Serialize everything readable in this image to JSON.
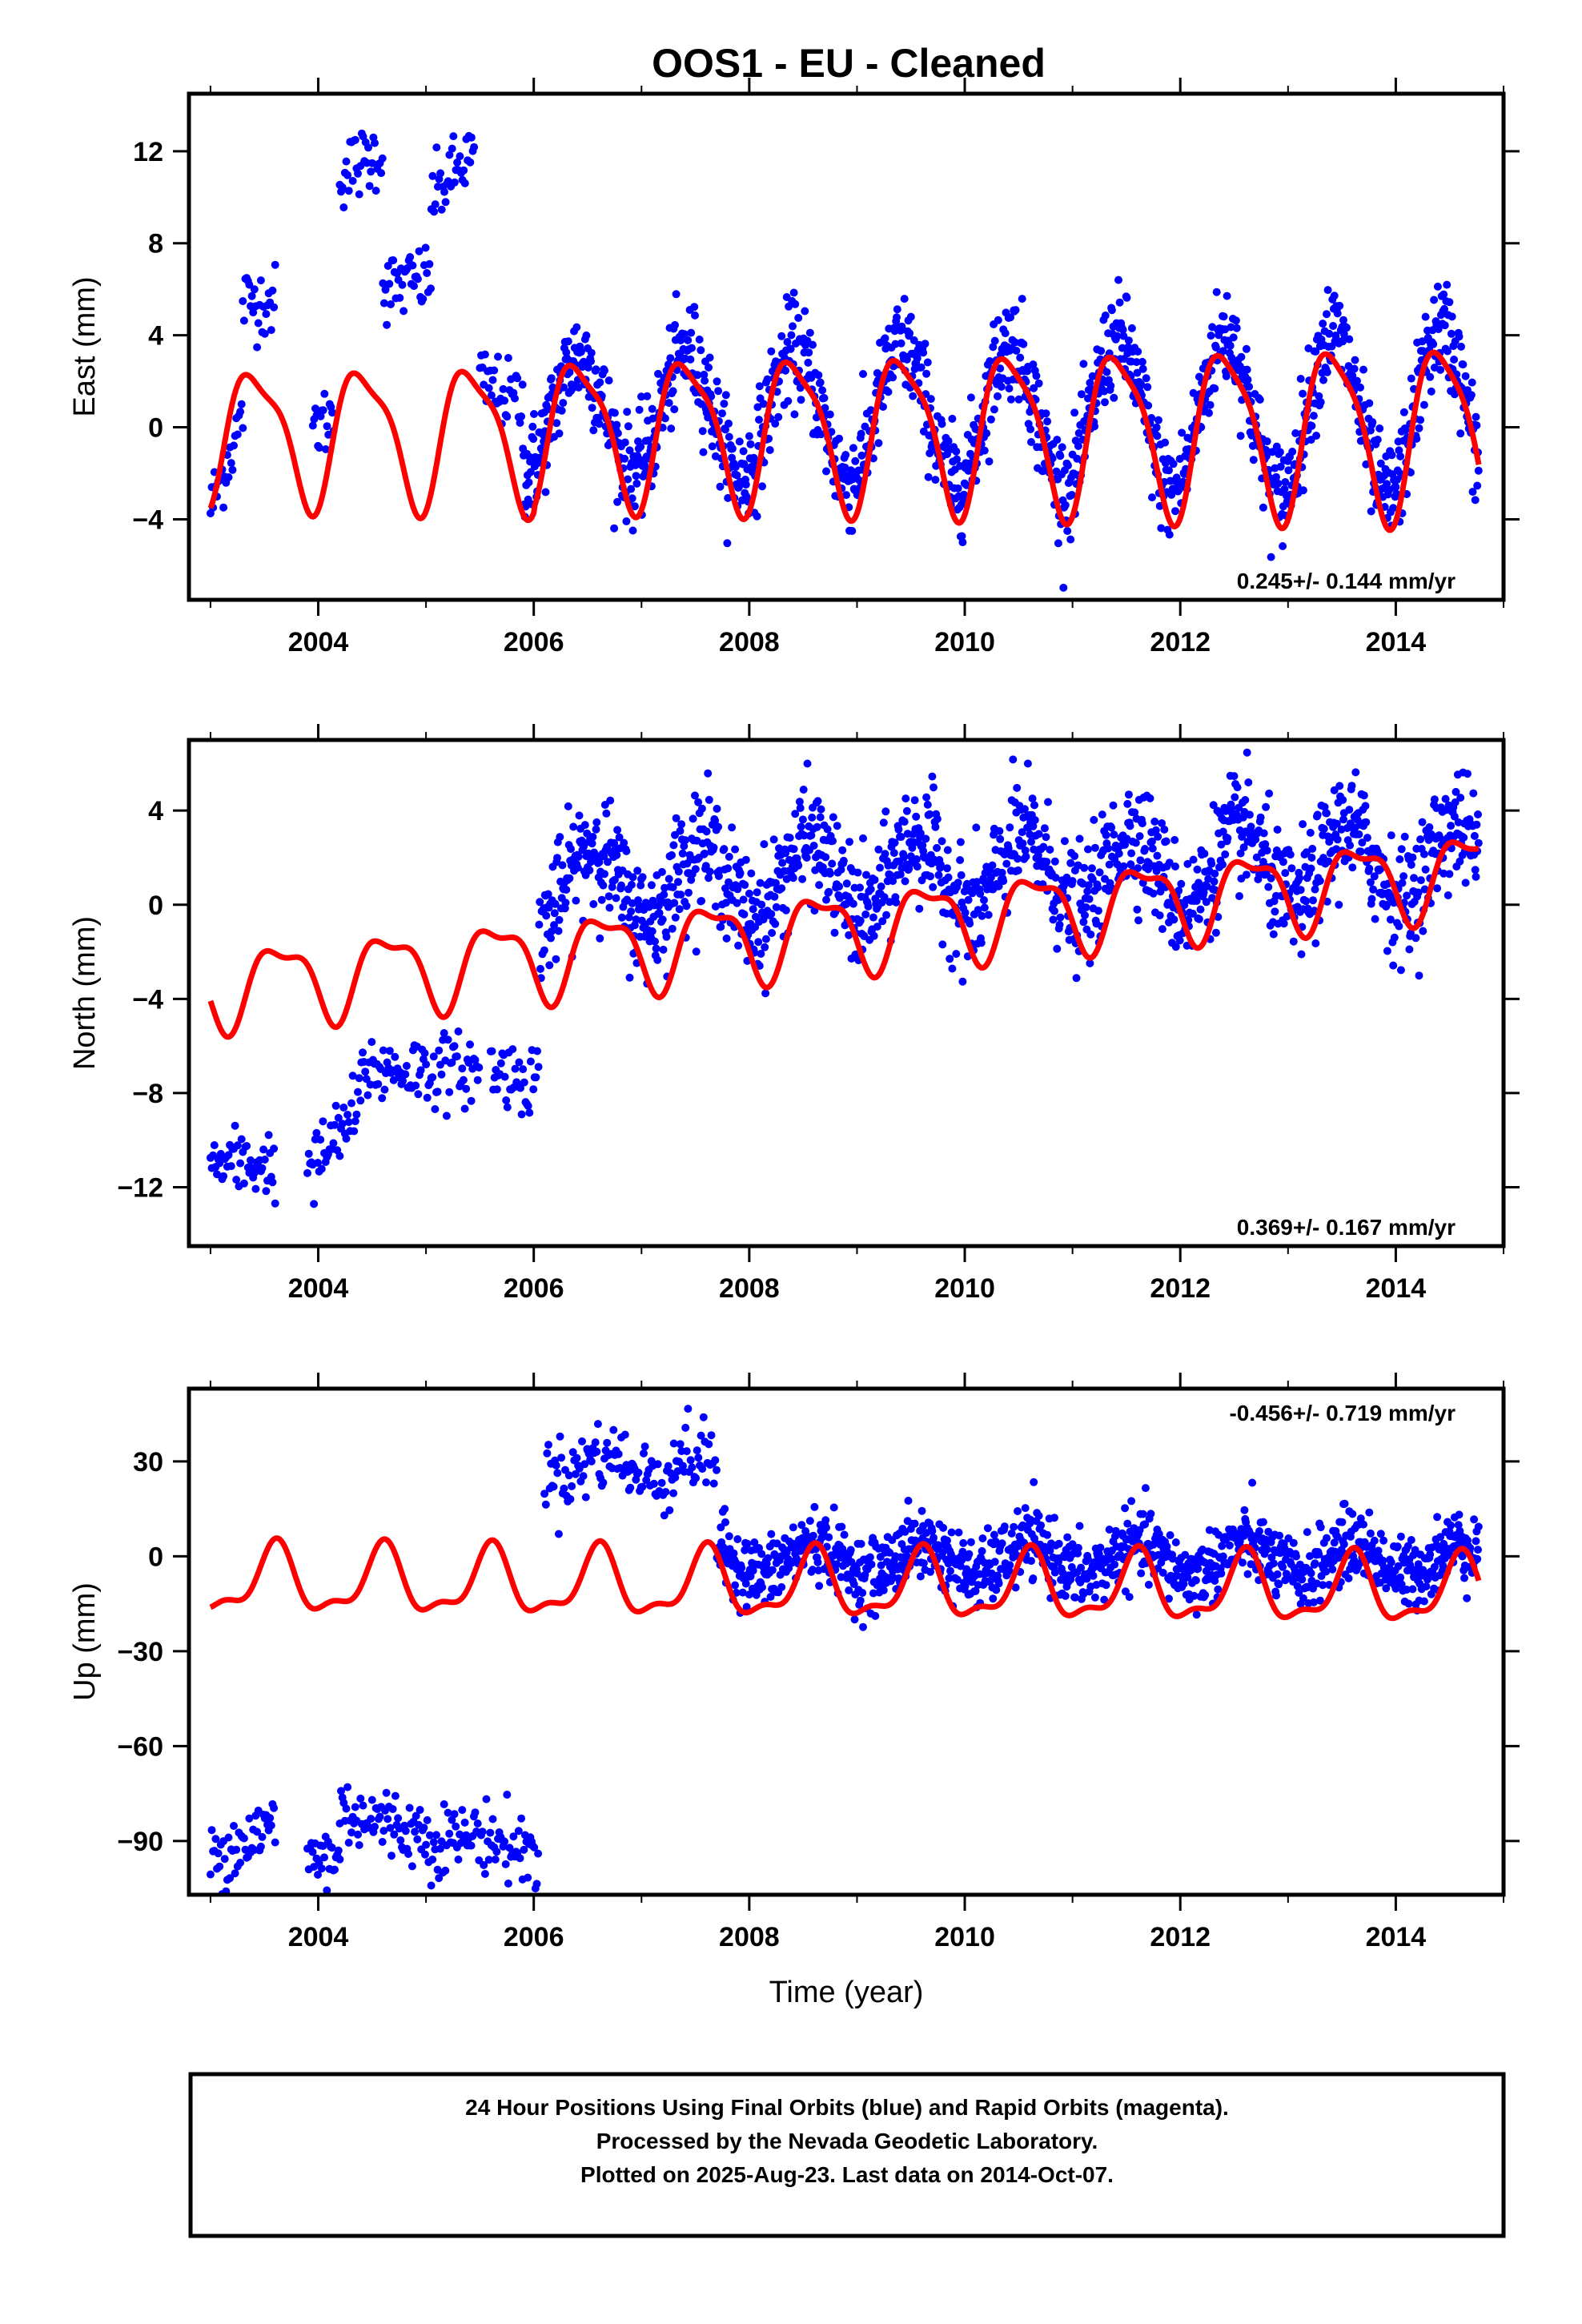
{
  "title": "OOS1  - EU - Cleaned",
  "colors": {
    "observed": "#0000ff",
    "model": "#ff0000",
    "frame": "#000000"
  },
  "caption": {
    "lines": [
      "24 Hour Positions Using Final Orbits (blue) and Rapid Orbits (magenta).",
      "Processed by the Nevada Geodetic Laboratory.",
      "Plotted on 2025-Aug-23. Last data on 2014-Oct-07."
    ]
  },
  "chart_data": [
    {
      "type": "scatter",
      "name": "east",
      "ylabel": "East (mm)",
      "xlabel": "",
      "xlim": [
        2002.8,
        2015.0
      ],
      "ylim": [
        -7.5,
        14.5
      ],
      "xticks": [
        2004,
        2006,
        2008,
        2010,
        2012,
        2014
      ],
      "yticks": [
        -4,
        0,
        4,
        8,
        12
      ],
      "rate_text": "0.245+/- 0.144 mm/yr",
      "rate_position": "bottom-right",
      "segments": [
        {
          "x": [
            2003.0,
            2003.3
          ],
          "y": [
            -3.5,
            0.5
          ]
        },
        {
          "x": [
            2003.3,
            2003.6
          ],
          "y": [
            5.5,
            5.5
          ]
        },
        {
          "x": [
            2003.95,
            2004.15
          ],
          "y": [
            0.0,
            0.5
          ]
        },
        {
          "x": [
            2004.2,
            2004.6
          ],
          "y": [
            11.0,
            12.0
          ]
        },
        {
          "x": [
            2004.6,
            2005.05
          ],
          "y": [
            6.0,
            6.5
          ]
        },
        {
          "x": [
            2005.05,
            2005.45
          ],
          "y": [
            10.0,
            12.0
          ]
        },
        {
          "x": [
            2005.5,
            2005.9
          ],
          "y": [
            2.0,
            1.0
          ]
        }
      ],
      "seasonal": {
        "start": 2005.9,
        "end": 2014.77,
        "base": 0.6,
        "trend": 0.0,
        "amp": 2.4,
        "amp_growth": 0.15,
        "phase": 2005.17,
        "noise": 1.1
      },
      "model": {
        "start": 2003.0,
        "end": 2014.77,
        "base": -0.3,
        "trend": 0.0,
        "amp": 2.8,
        "amp_growth": 0.08,
        "phase": 2003.17,
        "semi_amp": 0.8,
        "semi_phase": 2003.1,
        "offset_after_2006": 0.2
      }
    },
    {
      "type": "scatter",
      "name": "north",
      "ylabel": "North (mm)",
      "xlabel": "",
      "xlim": [
        2002.8,
        2015.0
      ],
      "ylim": [
        -14.5,
        7.0
      ],
      "xticks": [
        2004,
        2006,
        2008,
        2010,
        2012,
        2014
      ],
      "yticks": [
        -12,
        -8,
        -4,
        0,
        4
      ],
      "rate_text": "0.369+/- 0.167 mm/yr",
      "rate_position": "bottom-right",
      "segments": [
        {
          "x": [
            2003.0,
            2003.6
          ],
          "y": [
            -11.0,
            -11.0
          ]
        },
        {
          "x": [
            2003.9,
            2004.4
          ],
          "y": [
            -11.5,
            -8.5
          ]
        },
        {
          "x": [
            2004.4,
            2005.5
          ],
          "y": [
            -7.0,
            -7.0
          ]
        },
        {
          "x": [
            2005.6,
            2006.05
          ],
          "y": [
            -7.0,
            -7.5
          ]
        }
      ],
      "seasonal": {
        "start": 2006.05,
        "end": 2014.77,
        "base": 0.8,
        "trend": 0.12,
        "amp": 1.6,
        "amp_growth": 0.0,
        "phase": 2006.3,
        "noise": 1.2
      },
      "model": {
        "start": 2003.0,
        "end": 2014.77,
        "base": -3.5,
        "trend": 0.42,
        "amp": 1.6,
        "amp_growth": 0.0,
        "phase": 2003.4,
        "semi_amp": 0.6,
        "semi_phase": 2003.3,
        "offset_after_2006": 0.0
      }
    },
    {
      "type": "scatter",
      "name": "up",
      "ylabel": "Up (mm)",
      "xlabel": "Time (year)",
      "xlim": [
        2002.8,
        2015.0
      ],
      "ylim": [
        -107,
        53
      ],
      "xticks": [
        2004,
        2006,
        2008,
        2010,
        2012,
        2014
      ],
      "yticks": [
        -90,
        -60,
        -30,
        0,
        30
      ],
      "rate_text": "-0.456+/- 0.719 mm/yr",
      "rate_position": "top-right",
      "segments": [
        {
          "x": [
            2003.0,
            2003.6
          ],
          "y": [
            -95.0,
            -85.0
          ]
        },
        {
          "x": [
            2003.9,
            2004.2
          ],
          "y": [
            -95.0,
            -95.0
          ]
        },
        {
          "x": [
            2004.2,
            2005.0
          ],
          "y": [
            -80.0,
            -88.0
          ]
        },
        {
          "x": [
            2005.0,
            2005.5
          ],
          "y": [
            -90.0,
            -88.0
          ]
        },
        {
          "x": [
            2005.5,
            2006.05
          ],
          "y": [
            -88.0,
            -95.0
          ]
        },
        {
          "x": [
            2006.1,
            2006.5
          ],
          "y": [
            25.0,
            28.0
          ]
        },
        {
          "x": [
            2006.5,
            2006.9
          ],
          "y": [
            33.0,
            30.0
          ]
        },
        {
          "x": [
            2006.9,
            2007.3
          ],
          "y": [
            25.0,
            25.0
          ]
        },
        {
          "x": [
            2007.3,
            2007.7
          ],
          "y": [
            32.0,
            30.0
          ]
        }
      ],
      "seasonal": {
        "start": 2007.7,
        "end": 2014.77,
        "base": -1.0,
        "trend": 0.0,
        "amp": 5.0,
        "amp_growth": 0.0,
        "phase": 2008.35,
        "noise": 5.5
      },
      "model": {
        "start": 2003.0,
        "end": 2014.77,
        "base": -8.0,
        "trend": -0.3,
        "amp": 10.0,
        "amp_growth": 0.0,
        "phase": 2003.35,
        "semi_amp": 4.0,
        "semi_phase": 2003.5,
        "offset_after_2006": 0.0
      }
    }
  ]
}
